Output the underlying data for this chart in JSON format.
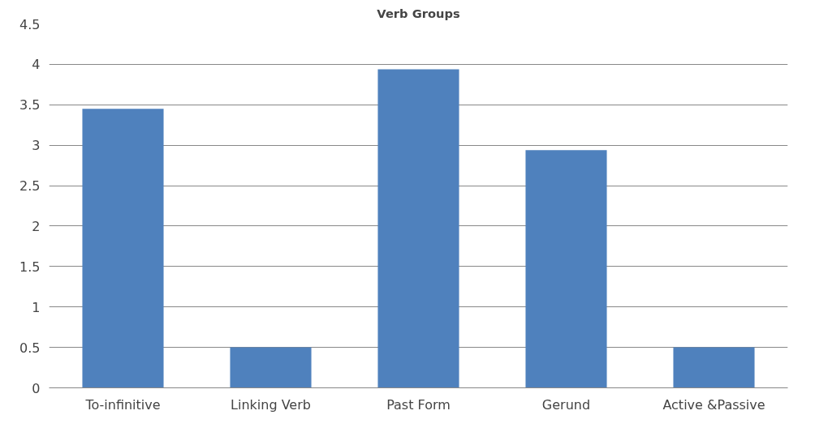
{
  "chart_data": {
    "type": "bar",
    "title": "Verb Groups",
    "categories": [
      "To-infinitive",
      "Linking Verb",
      "Past Form",
      "Gerund",
      "Active &Passive"
    ],
    "values": [
      3.45,
      0.5,
      3.94,
      2.94,
      0.5
    ],
    "color": "#4f81bd",
    "ylim": [
      0,
      4.5
    ],
    "yticks": [
      0,
      0.5,
      1,
      1.5,
      2,
      2.5,
      3,
      3.5,
      4,
      4.5
    ],
    "grid": "y"
  }
}
